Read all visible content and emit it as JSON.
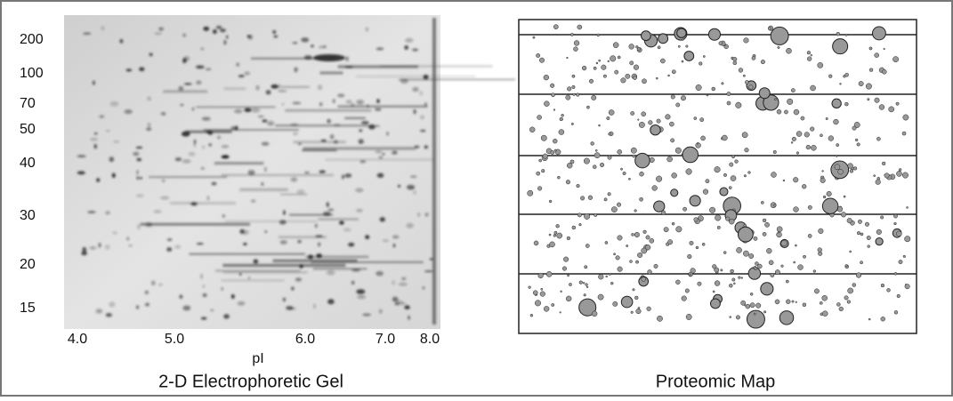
{
  "gel": {
    "y_labels": [
      "200",
      "100",
      "70",
      "50",
      "40",
      "30",
      "20",
      "15"
    ],
    "x_labels": [
      "4.0",
      "5.0",
      "6.0",
      "7.0",
      "8.0"
    ],
    "x_axis_label": "pI",
    "caption": "2-D Electrophoretic Gel"
  },
  "map": {
    "caption": "Proteomic Map"
  }
}
